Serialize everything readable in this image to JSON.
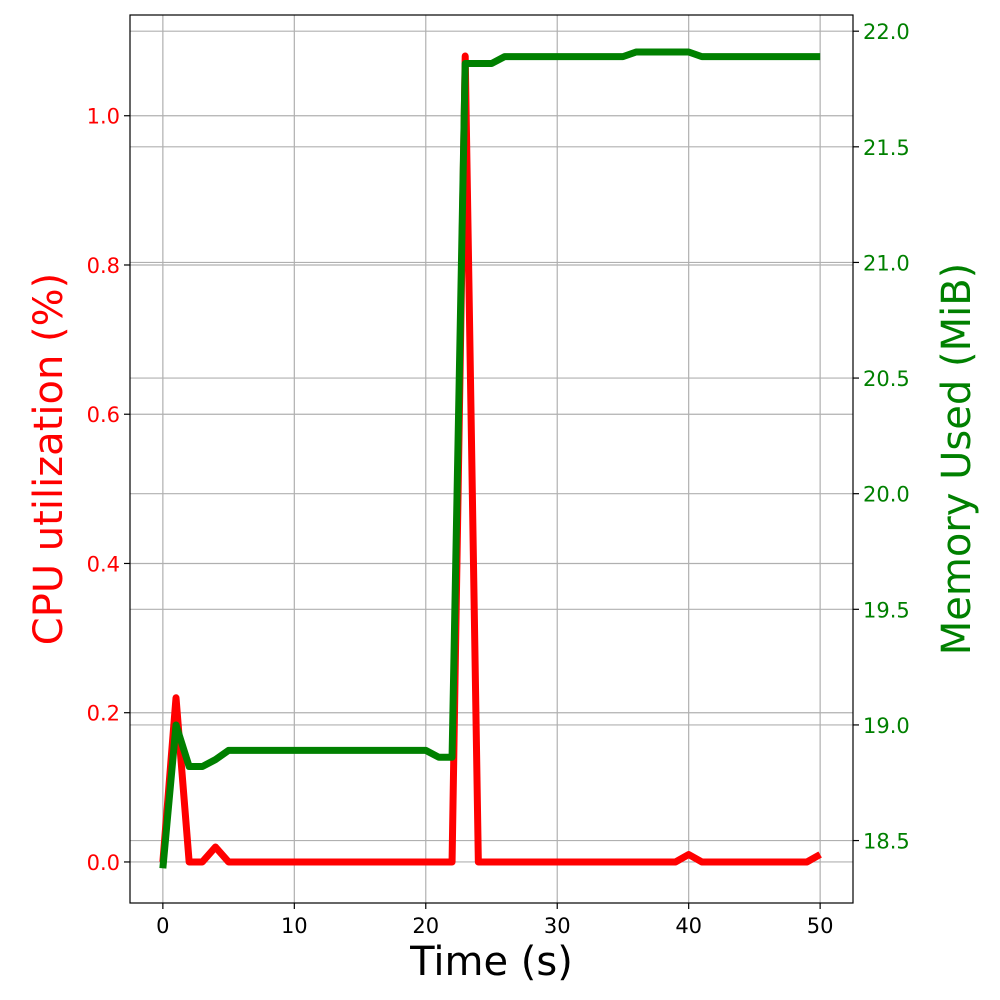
{
  "chart_data": {
    "type": "line",
    "title": "",
    "xlabel": "Time (s)",
    "ylabel_left": "CPU utilization (%)",
    "ylabel_right": "Memory Used (MiB)",
    "xlim": [
      -2.5,
      52.5
    ],
    "ylim_left": [
      -0.055,
      1.135
    ],
    "ylim_right": [
      18.23,
      22.07
    ],
    "x_ticks": [
      0,
      10,
      20,
      30,
      40,
      50
    ],
    "x_tick_labels": [
      "0",
      "10",
      "20",
      "30",
      "40",
      "50"
    ],
    "y_left_ticks": [
      0.0,
      0.2,
      0.4,
      0.6,
      0.8,
      1.0
    ],
    "y_left_tick_labels": [
      "0.0",
      "0.2",
      "0.4",
      "0.6",
      "0.8",
      "1.0"
    ],
    "y_right_ticks": [
      18.5,
      19.0,
      19.5,
      20.0,
      20.5,
      21.0,
      21.5,
      22.0
    ],
    "y_right_tick_labels": [
      "18.5",
      "19.0",
      "19.5",
      "20.0",
      "20.5",
      "21.0",
      "21.5",
      "22.0"
    ],
    "grid": true,
    "colors": {
      "cpu": "#ff0000",
      "memory": "#008000",
      "grid": "#b0b0b0",
      "axis": "#000000"
    },
    "series": [
      {
        "axis": "left",
        "color": "#ff0000",
        "x": [
          0,
          1,
          2,
          3,
          4,
          5,
          6,
          7,
          8,
          9,
          10,
          11,
          12,
          13,
          14,
          15,
          16,
          17,
          18,
          19,
          20,
          21,
          22,
          23,
          24,
          25,
          26,
          27,
          28,
          29,
          30,
          31,
          32,
          33,
          34,
          35,
          36,
          37,
          38,
          39,
          40,
          41,
          42,
          43,
          44,
          45,
          46,
          47,
          48,
          49,
          50
        ],
        "values": [
          0,
          0.22,
          0,
          0,
          0.02,
          0,
          0,
          0,
          0,
          0,
          0,
          0,
          0,
          0,
          0,
          0,
          0,
          0,
          0,
          0,
          0,
          0,
          0,
          1.08,
          0,
          0,
          0,
          0,
          0,
          0,
          0,
          0,
          0,
          0,
          0,
          0,
          0,
          0,
          0,
          0,
          0.01,
          0,
          0,
          0,
          0,
          0,
          0,
          0,
          0,
          0,
          0.01
        ]
      },
      {
        "axis": "right",
        "color": "#008000",
        "x": [
          0,
          1,
          2,
          3,
          4,
          5,
          6,
          7,
          8,
          9,
          10,
          11,
          12,
          13,
          14,
          15,
          16,
          17,
          18,
          19,
          20,
          21,
          22,
          23,
          24,
          25,
          26,
          27,
          28,
          29,
          30,
          31,
          32,
          33,
          34,
          35,
          36,
          37,
          38,
          39,
          40,
          41,
          42,
          43,
          44,
          45,
          46,
          47,
          48,
          49,
          50
        ],
        "values": [
          18.38,
          19.0,
          18.82,
          18.82,
          18.85,
          18.89,
          18.89,
          18.89,
          18.89,
          18.89,
          18.89,
          18.89,
          18.89,
          18.89,
          18.89,
          18.89,
          18.89,
          18.89,
          18.89,
          18.89,
          18.89,
          18.86,
          18.86,
          21.86,
          21.86,
          21.86,
          21.89,
          21.89,
          21.89,
          21.89,
          21.89,
          21.89,
          21.89,
          21.89,
          21.89,
          21.89,
          21.91,
          21.91,
          21.91,
          21.91,
          21.91,
          21.89,
          21.89,
          21.89,
          21.89,
          21.89,
          21.89,
          21.89,
          21.89,
          21.89,
          21.89
        ]
      }
    ]
  }
}
